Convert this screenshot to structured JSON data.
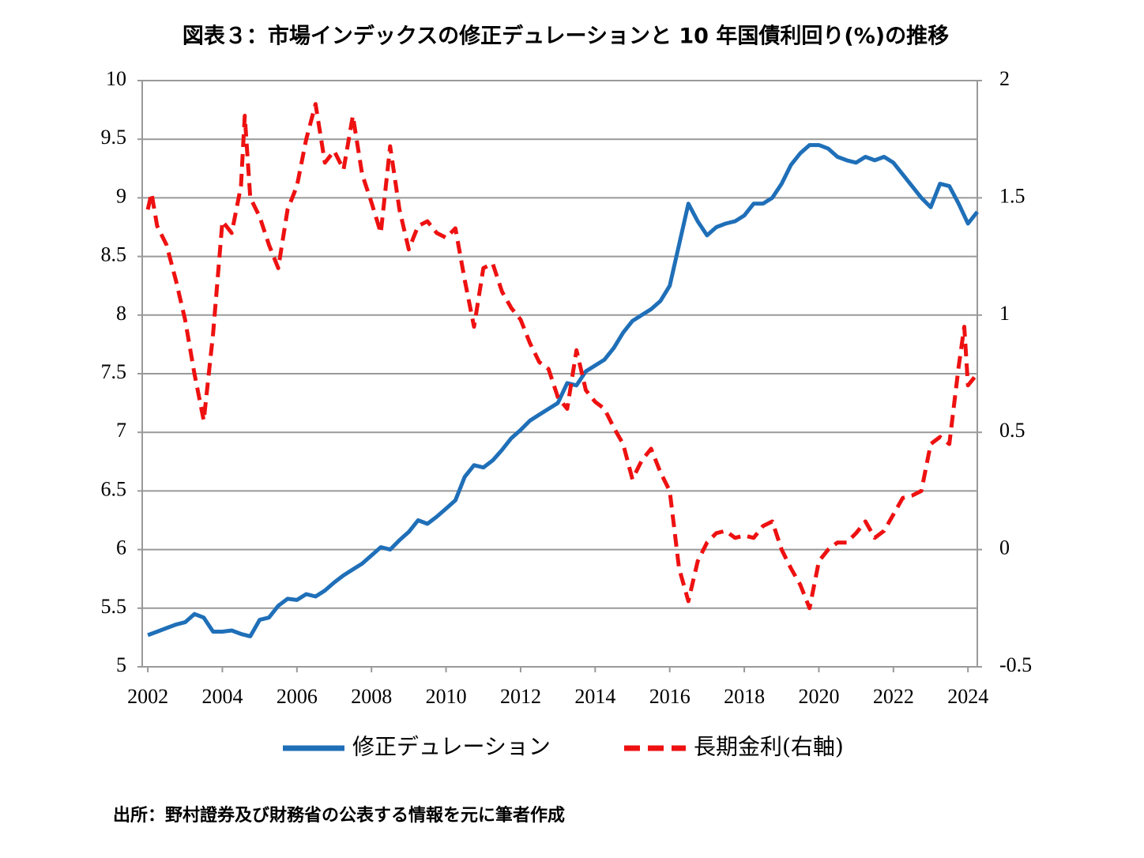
{
  "chart_data": {
    "type": "line",
    "title": "図表３：市場インデックスの修正デュレーションと 10 年国債利回り(%)の推移",
    "source": "出所：野村證券及び財務省の公表する情報を元に筆者作成",
    "xlim": [
      2001.85,
      2024.25
    ],
    "xticks": [
      2002,
      2004,
      2006,
      2008,
      2010,
      2012,
      2014,
      2016,
      2018,
      2020,
      2022,
      2024
    ],
    "ylim": [
      5,
      10
    ],
    "yticks": [
      5,
      5.5,
      6,
      6.5,
      7,
      7.5,
      8,
      8.5,
      9,
      9.5,
      10
    ],
    "y2lim": [
      -0.5,
      2
    ],
    "y2ticks": [
      -0.5,
      0,
      0.5,
      1,
      1.5,
      2
    ],
    "grid": true,
    "series": [
      {
        "name": "修正デュレーション",
        "color": "#1f6fb8",
        "dashed": false,
        "x": [
          2002,
          2002.25,
          2002.5,
          2002.75,
          2003,
          2003.25,
          2003.5,
          2003.75,
          2004,
          2004.25,
          2004.5,
          2004.75,
          2005,
          2005.25,
          2005.5,
          2005.75,
          2006,
          2006.25,
          2006.5,
          2006.75,
          2007,
          2007.25,
          2007.5,
          2007.75,
          2008,
          2008.25,
          2008.5,
          2008.75,
          2009,
          2009.25,
          2009.5,
          2009.75,
          2010,
          2010.25,
          2010.5,
          2010.75,
          2011,
          2011.25,
          2011.5,
          2011.75,
          2012,
          2012.25,
          2012.5,
          2012.75,
          2013,
          2013.25,
          2013.5,
          2013.75,
          2014,
          2014.25,
          2014.5,
          2014.75,
          2015,
          2015.25,
          2015.5,
          2015.75,
          2016,
          2016.25,
          2016.5,
          2016.75,
          2017,
          2017.25,
          2017.5,
          2017.75,
          2018,
          2018.25,
          2018.5,
          2018.75,
          2019,
          2019.25,
          2019.5,
          2019.75,
          2020,
          2020.25,
          2020.5,
          2020.75,
          2021,
          2021.25,
          2021.5,
          2021.75,
          2022,
          2022.25,
          2022.5,
          2022.75,
          2023,
          2023.25,
          2023.5,
          2023.75,
          2024,
          2024.25
        ],
        "values": [
          5.27,
          5.3,
          5.33,
          5.36,
          5.38,
          5.45,
          5.42,
          5.3,
          5.3,
          5.31,
          5.28,
          5.26,
          5.4,
          5.42,
          5.52,
          5.58,
          5.57,
          5.62,
          5.6,
          5.65,
          5.72,
          5.78,
          5.83,
          5.88,
          5.95,
          6.02,
          6,
          6.08,
          6.15,
          6.25,
          6.22,
          6.28,
          6.35,
          6.42,
          6.62,
          6.72,
          6.7,
          6.76,
          6.85,
          6.95,
          7.02,
          7.1,
          7.15,
          7.2,
          7.25,
          7.42,
          7.4,
          7.52,
          7.57,
          7.62,
          7.72,
          7.85,
          7.95,
          8,
          8.05,
          8.12,
          8.25,
          8.6,
          8.95,
          8.8,
          8.68,
          8.75,
          8.78,
          8.8,
          8.85,
          8.95,
          8.95,
          9,
          9.12,
          9.28,
          9.38,
          9.45,
          9.45,
          9.42,
          9.35,
          9.32,
          9.3,
          9.35,
          9.32,
          9.35,
          9.3,
          9.2,
          9.1,
          9,
          8.92,
          9.12,
          9.1,
          8.95,
          8.78,
          8.88
        ]
      },
      {
        "name": "長期金利(右軸)",
        "color": "#ee1111",
        "dashed": true,
        "axis": "y2",
        "x": [
          2002,
          2002.1,
          2002.25,
          2002.5,
          2002.75,
          2003,
          2003.25,
          2003.5,
          2003.75,
          2004,
          2004.25,
          2004.5,
          2004.6,
          2004.75,
          2005,
          2005.25,
          2005.5,
          2005.75,
          2006,
          2006.25,
          2006.5,
          2006.75,
          2007,
          2007.25,
          2007.5,
          2007.75,
          2008,
          2008.25,
          2008.5,
          2008.75,
          2009,
          2009.25,
          2009.5,
          2009.75,
          2010,
          2010.25,
          2010.5,
          2010.75,
          2011,
          2011.25,
          2011.5,
          2011.75,
          2012,
          2012.25,
          2012.5,
          2012.75,
          2013,
          2013.25,
          2013.5,
          2013.75,
          2014,
          2014.25,
          2014.5,
          2014.75,
          2015,
          2015.25,
          2015.5,
          2015.75,
          2016,
          2016.25,
          2016.5,
          2016.75,
          2017,
          2017.25,
          2017.5,
          2017.75,
          2018,
          2018.25,
          2018.5,
          2018.75,
          2019,
          2019.25,
          2019.5,
          2019.75,
          2020,
          2020.25,
          2020.5,
          2020.75,
          2021,
          2021.25,
          2021.5,
          2021.75,
          2022,
          2022.25,
          2022.5,
          2022.75,
          2023,
          2023.25,
          2023.5,
          2023.75,
          2023.9,
          2024,
          2024.25
        ],
        "values": [
          1.45,
          1.52,
          1.38,
          1.3,
          1.15,
          0.98,
          0.75,
          0.55,
          0.92,
          1.4,
          1.35,
          1.55,
          1.85,
          1.5,
          1.42,
          1.3,
          1.2,
          1.45,
          1.55,
          1.75,
          1.9,
          1.65,
          1.7,
          1.62,
          1.85,
          1.6,
          1.48,
          1.35,
          1.72,
          1.45,
          1.28,
          1.38,
          1.4,
          1.35,
          1.33,
          1.37,
          1.15,
          0.95,
          1.2,
          1.22,
          1.1,
          1.03,
          0.98,
          0.88,
          0.8,
          0.77,
          0.65,
          0.6,
          0.85,
          0.68,
          0.63,
          0.6,
          0.52,
          0.45,
          0.3,
          0.38,
          0.43,
          0.33,
          0.25,
          -0.08,
          -0.22,
          -0.05,
          0.03,
          0.07,
          0.08,
          0.05,
          0.06,
          0.05,
          0.1,
          0.12,
          0,
          -0.08,
          -0.15,
          -0.25,
          -0.05,
          0,
          0.03,
          0.03,
          0.07,
          0.12,
          0.05,
          0.08,
          0.15,
          0.22,
          0.23,
          0.25,
          0.45,
          0.48,
          0.45,
          0.78,
          0.95,
          0.7,
          0.75
        ]
      }
    ]
  }
}
